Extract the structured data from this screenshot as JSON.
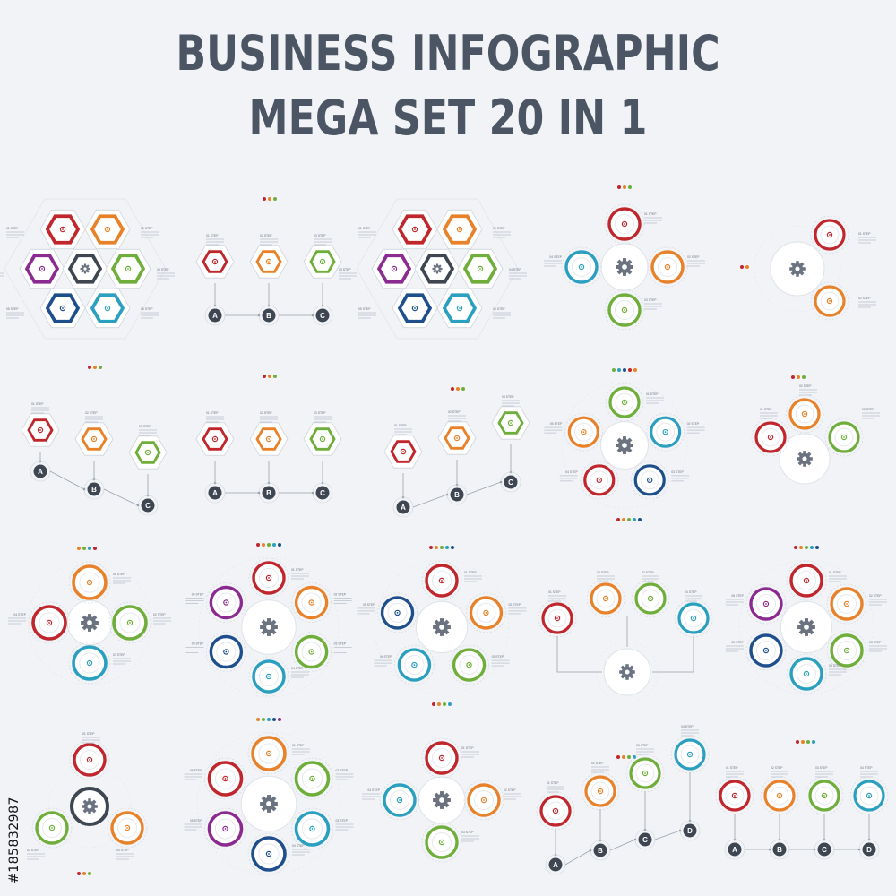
{
  "title": {
    "line1": "BUSINESS INFOGRAPHIC",
    "line2": "MEGA SET 20 IN 1"
  },
  "colors": {
    "red": "#c0272d",
    "orange": "#e8822a",
    "green": "#6fae3a",
    "teal": "#2a9fbf",
    "purple": "#8b2b8f",
    "navy": "#1e4f8c",
    "gear": "#6b7280",
    "line": "#9aa3ad",
    "background": "#f1f3f6"
  },
  "step_labels": [
    "01 STEP",
    "02 STEP",
    "03 STEP",
    "04 STEP",
    "05 STEP",
    "06 STEP"
  ],
  "letters": [
    "A",
    "B",
    "C",
    "D"
  ],
  "icons": [
    "pin-icon",
    "target-icon",
    "calendar-icon",
    "chat-icon",
    "briefcase-icon",
    "megaphone-icon",
    "gear-icon"
  ],
  "watermark": "#185832987"
}
